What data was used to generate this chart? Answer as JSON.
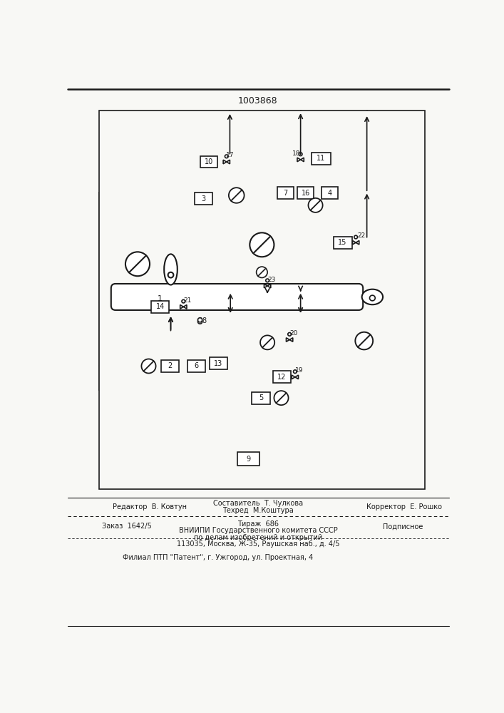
{
  "title": "1003868",
  "bg": "#f8f8f5",
  "lc": "#1a1a1a",
  "footer": {
    "editor": "Редактор  В. Ковтун",
    "composer": "Составитель  Т. Чулкова",
    "techred": "Техред  М.Коштура",
    "corrector": "Корректор  Е. Рошко",
    "order": "Заказ  1642/5",
    "tirazh": "Тираж  686",
    "podpisnoe": "Подписное",
    "vniipи": "ВНИИПИ Государственного комитета СССР",
    "po_delam": "по делам изобретений и открытий",
    "address": "113035, Москва, Ж-35, Раушская наб., д. 4/5",
    "filial": "Филиал ПТП \"Патент\", г. Ужгород, ул. Проектная, 4"
  }
}
